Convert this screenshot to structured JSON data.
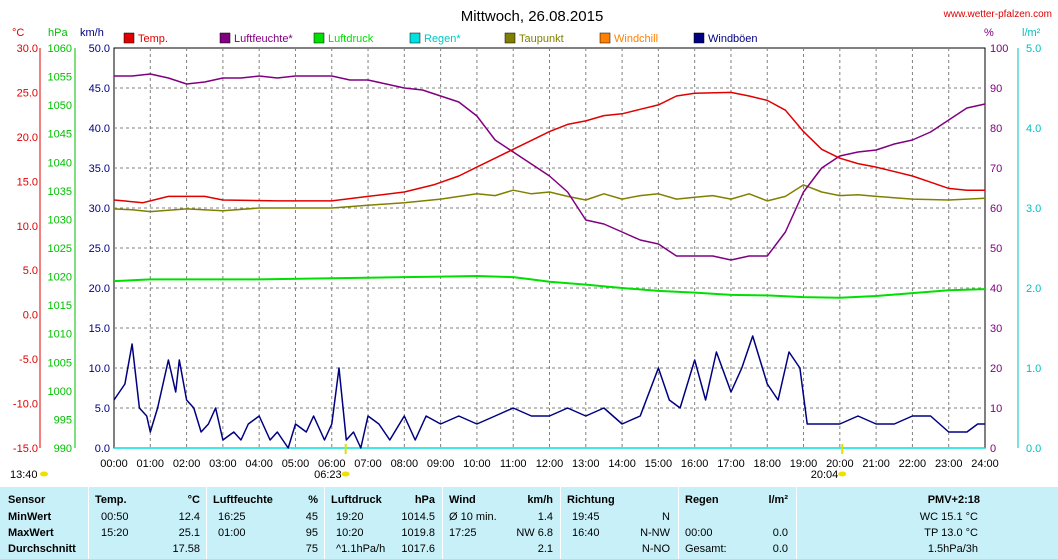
{
  "header": {
    "title": "Mittwoch, 26.08.2015",
    "site": "www.wetter-pfalzen.com"
  },
  "units": {
    "temp": "°C",
    "pressure": "hPa",
    "wind": "km/h",
    "humidity": "%",
    "rain": "l/m²"
  },
  "legend": [
    {
      "label": "Temp.",
      "color": "#e00000"
    },
    {
      "label": "Luftfeuchte*",
      "color": "#800080"
    },
    {
      "label": "Luftdruck",
      "color": "#00e000"
    },
    {
      "label": "Regen*",
      "color": "#00e0e0"
    },
    {
      "label": "Taupunkt",
      "color": "#808000"
    },
    {
      "label": "Windchill",
      "color": "#ff8000"
    },
    {
      "label": "Windböen",
      "color": "#000080"
    }
  ],
  "sun": {
    "rise": "06:23",
    "set": "20:04"
  },
  "moon": {
    "rise": "13:40"
  },
  "chart_data": {
    "type": "line",
    "title": "Mittwoch, 26.08.2015",
    "xlabel": "",
    "x_ticks": [
      "00:00",
      "01:00",
      "02:00",
      "03:00",
      "04:00",
      "05:00",
      "06:00",
      "07:00",
      "08:00",
      "09:00",
      "10:00",
      "11:00",
      "12:00",
      "13:00",
      "14:00",
      "15:00",
      "16:00",
      "17:00",
      "18:00",
      "19:00",
      "20:00",
      "21:00",
      "22:00",
      "23:00",
      "24:00"
    ],
    "axes": {
      "temp": {
        "ticks": [
          "30.0",
          "25.0",
          "20.0",
          "15.0",
          "10.0",
          "5.0",
          "0.0",
          "-5.0",
          "-10.0",
          "-15.0"
        ],
        "ylim": [
          -15,
          30
        ],
        "color": "#e00000"
      },
      "pressure": {
        "ticks": [
          "1060",
          "1055",
          "1050",
          "1045",
          "1040",
          "1035",
          "1030",
          "1025",
          "1020",
          "1015",
          "1010",
          "1005",
          "1000",
          "995",
          "990"
        ],
        "ylim": [
          990,
          1060
        ],
        "color": "#00c000"
      },
      "wind": {
        "ticks": [
          "50.0",
          "45.0",
          "40.0",
          "35.0",
          "30.0",
          "25.0",
          "20.0",
          "15.0",
          "10.0",
          "5.0",
          "0.0"
        ],
        "ylim": [
          0,
          50
        ],
        "color": "#000080"
      },
      "humidity": {
        "ticks": [
          "100",
          "90",
          "80",
          "70",
          "60",
          "50",
          "40",
          "30",
          "20",
          "10",
          "0"
        ],
        "ylim": [
          0,
          100
        ],
        "color": "#800080"
      },
      "rain": {
        "ticks": [
          "5.0",
          "4.0",
          "3.0",
          "2.0",
          "1.0",
          "0.0"
        ],
        "ylim": [
          0,
          5
        ],
        "color": "#00c0c0"
      }
    },
    "grid": true,
    "series": [
      {
        "name": "Temp.",
        "axis": "temp",
        "color": "#e00000",
        "x": [
          0,
          0.8,
          1.0,
          1.5,
          2.5,
          3.0,
          4.5,
          6.0,
          7.0,
          8.0,
          8.8,
          9.5,
          10.0,
          10.5,
          11.0,
          11.5,
          12.0,
          12.5,
          13.0,
          13.5,
          14.0,
          14.5,
          15.0,
          15.5,
          16.0,
          17.0,
          17.5,
          18.0,
          18.5,
          19.0,
          19.5,
          20.0,
          20.5,
          21.0,
          22.0,
          22.5,
          23.0,
          23.5,
          24.0
        ],
        "y": [
          12.9,
          12.6,
          12.8,
          13.3,
          13.3,
          12.9,
          12.8,
          12.8,
          13.3,
          13.8,
          14.6,
          15.6,
          16.6,
          17.6,
          18.6,
          19.6,
          20.6,
          21.4,
          21.8,
          22.4,
          22.6,
          23.1,
          23.6,
          24.6,
          24.9,
          25.0,
          24.6,
          24.1,
          23.0,
          20.6,
          18.6,
          17.6,
          17.0,
          16.6,
          15.6,
          14.9,
          14.2,
          14.0,
          14.0
        ]
      },
      {
        "name": "Luftfeuchte*",
        "axis": "humidity",
        "color": "#800080",
        "x": [
          0,
          0.5,
          1.0,
          1.5,
          2.0,
          2.5,
          3.0,
          3.5,
          4.0,
          4.5,
          5.0,
          5.5,
          6.0,
          6.5,
          7.0,
          7.5,
          8.0,
          8.5,
          9.0,
          9.5,
          10.0,
          10.5,
          11.0,
          11.5,
          12.0,
          12.5,
          13.0,
          13.5,
          14.0,
          14.5,
          15.0,
          15.5,
          16.0,
          16.5,
          17.0,
          17.5,
          18.0,
          18.5,
          19.0,
          19.5,
          20.0,
          20.5,
          21.0,
          21.5,
          22.0,
          22.5,
          23.0,
          23.5,
          24.0
        ],
        "y": [
          93.0,
          93.0,
          93.5,
          92.5,
          91.0,
          91.5,
          92.5,
          92.5,
          93.0,
          92.5,
          93.0,
          93.0,
          93.0,
          92.0,
          92.0,
          91.0,
          90.0,
          89.5,
          88.0,
          86.5,
          83.0,
          77.0,
          74.0,
          71.0,
          68.0,
          64.0,
          57.0,
          56.0,
          54.0,
          52.0,
          51.0,
          48.0,
          48.0,
          48.0,
          47.0,
          48.0,
          48.0,
          54.0,
          64.0,
          70.0,
          73.0,
          74.0,
          74.5,
          76.0,
          77.0,
          79.0,
          82.0,
          85.0,
          86.0
        ]
      },
      {
        "name": "Luftdruck",
        "axis": "pressure",
        "color": "#00e000",
        "x": [
          0,
          1.0,
          2.0,
          4.0,
          6.0,
          8.0,
          9.0,
          10.0,
          11.0,
          11.5,
          12.0,
          13.0,
          14.0,
          15.0,
          16.0,
          17.0,
          18.0,
          19.0,
          20.0,
          21.0,
          22.0,
          23.0,
          24.0
        ],
        "y": [
          1019.2,
          1019.5,
          1019.5,
          1019.5,
          1019.7,
          1019.9,
          1020.0,
          1020.1,
          1019.9,
          1019.5,
          1019.1,
          1018.6,
          1018.0,
          1017.5,
          1017.2,
          1016.8,
          1016.7,
          1016.4,
          1016.3,
          1016.6,
          1017.1,
          1017.6,
          1017.8
        ]
      },
      {
        "name": "Taupunkt",
        "axis": "temp",
        "color": "#808000",
        "x": [
          0,
          0.5,
          1.0,
          2.0,
          3.0,
          4.0,
          5.0,
          6.0,
          7.0,
          8.0,
          9.0,
          10.0,
          10.5,
          11.0,
          11.5,
          12.0,
          12.5,
          13.0,
          13.5,
          14.0,
          14.5,
          15.0,
          15.5,
          16.0,
          16.5,
          17.0,
          17.5,
          18.0,
          18.5,
          19.0,
          19.5,
          20.0,
          20.5,
          21.0,
          22.0,
          23.0,
          24.0
        ],
        "y": [
          11.9,
          11.8,
          11.6,
          11.9,
          11.7,
          12.0,
          12.0,
          12.0,
          12.3,
          12.6,
          13.0,
          13.6,
          13.4,
          14.0,
          13.6,
          13.8,
          13.3,
          12.9,
          13.6,
          13.0,
          13.4,
          13.6,
          13.0,
          13.2,
          13.4,
          13.0,
          13.6,
          12.8,
          13.3,
          14.6,
          13.8,
          13.4,
          13.5,
          13.3,
          13.0,
          12.9,
          13.1
        ]
      },
      {
        "name": "Windböen",
        "axis": "wind",
        "color": "#000080",
        "x": [
          0,
          0.3,
          0.5,
          0.7,
          0.9,
          1.0,
          1.2,
          1.5,
          1.7,
          1.8,
          2.0,
          2.2,
          2.4,
          2.6,
          2.8,
          3.0,
          3.3,
          3.5,
          3.7,
          4.0,
          4.3,
          4.5,
          4.8,
          5.0,
          5.3,
          5.5,
          5.8,
          6.0,
          6.2,
          6.4,
          6.6,
          6.8,
          7.0,
          7.3,
          7.6,
          8.0,
          8.3,
          8.6,
          9.0,
          9.5,
          10.0,
          10.5,
          11.0,
          11.5,
          12.0,
          12.5,
          13.0,
          13.5,
          14.0,
          14.5,
          15.0,
          15.3,
          15.6,
          16.0,
          16.3,
          16.6,
          17.0,
          17.3,
          17.6,
          18.0,
          18.3,
          18.6,
          18.9,
          19.1,
          19.5,
          20.0,
          20.5,
          21.0,
          21.5,
          22.0,
          22.5,
          23.0,
          23.5,
          23.8,
          24.0
        ],
        "y": [
          6.0,
          8.0,
          13.0,
          5.0,
          4.0,
          2.0,
          5.0,
          11.0,
          7.0,
          11.0,
          6.0,
          5.0,
          2.0,
          3.0,
          5.0,
          1.0,
          2.0,
          1.0,
          3.0,
          4.0,
          1.0,
          2.0,
          0.0,
          3.0,
          2.0,
          4.0,
          1.0,
          3.0,
          10.0,
          1.0,
          2.0,
          0.0,
          4.0,
          3.0,
          1.0,
          4.0,
          1.0,
          4.0,
          3.0,
          4.0,
          3.0,
          4.0,
          5.0,
          4.0,
          4.0,
          5.0,
          4.0,
          5.0,
          3.0,
          4.0,
          10.0,
          6.0,
          5.0,
          11.0,
          6.0,
          12.0,
          7.0,
          10.0,
          14.0,
          8.0,
          6.0,
          12.0,
          10.0,
          3.0,
          3.0,
          3.0,
          4.0,
          3.0,
          3.0,
          4.0,
          4.0,
          2.0,
          2.0,
          3.0,
          3.0
        ]
      },
      {
        "name": "Regen*",
        "axis": "rain",
        "color": "#00e0e0",
        "x": [
          0,
          24.0
        ],
        "y": [
          0.0,
          0.0
        ]
      }
    ]
  },
  "stats": {
    "headers": {
      "sensor": "Sensor",
      "temp": "Temp.",
      "temp_unit": "°C",
      "hum": "Luftfeuchte",
      "hum_unit": "%",
      "press": "Luftdruck",
      "press_unit": "hPa",
      "wind": "Wind",
      "wind_unit": "km/h",
      "dir": "Richtung",
      "rain": "Regen",
      "rain_unit": "l/m²",
      "pmv": "PMV+2:18"
    },
    "rows": [
      {
        "label": "MinWert",
        "temp_time": "00:50",
        "temp_val": "12.4",
        "hum_time": "16:25",
        "hum_val": "45",
        "press_time": "19:20",
        "press_val": "1014.5",
        "wind_time": "Ø 10 min.",
        "wind_val": "1.4",
        "dir_time": "19:45",
        "dir_val": "N",
        "rain_time": "",
        "rain_val": "",
        "extra": "WC 15.1 °C"
      },
      {
        "label": "MaxWert",
        "temp_time": "15:20",
        "temp_val": "25.1",
        "hum_time": "01:00",
        "hum_val": "95",
        "press_time": "10:20",
        "press_val": "1019.8",
        "wind_time": "17:25",
        "wind_val": "NW 6.8",
        "dir_time": "16:40",
        "dir_val": "N-NW",
        "rain_time": "00:00",
        "rain_val": "0.0",
        "extra": "TP 13.0 °C"
      },
      {
        "label": "Durchschnitt",
        "temp_time": "",
        "temp_val": "17.58",
        "hum_time": "",
        "hum_val": "75",
        "press_time": "^1.1hPa/h",
        "press_val": "1017.6",
        "wind_time": "",
        "wind_val": "2.1",
        "dir_time": "",
        "dir_val": "N-NO",
        "rain_time": "Gesamt:",
        "rain_val": "0.0",
        "extra": "1.5hPa/3h"
      }
    ]
  }
}
